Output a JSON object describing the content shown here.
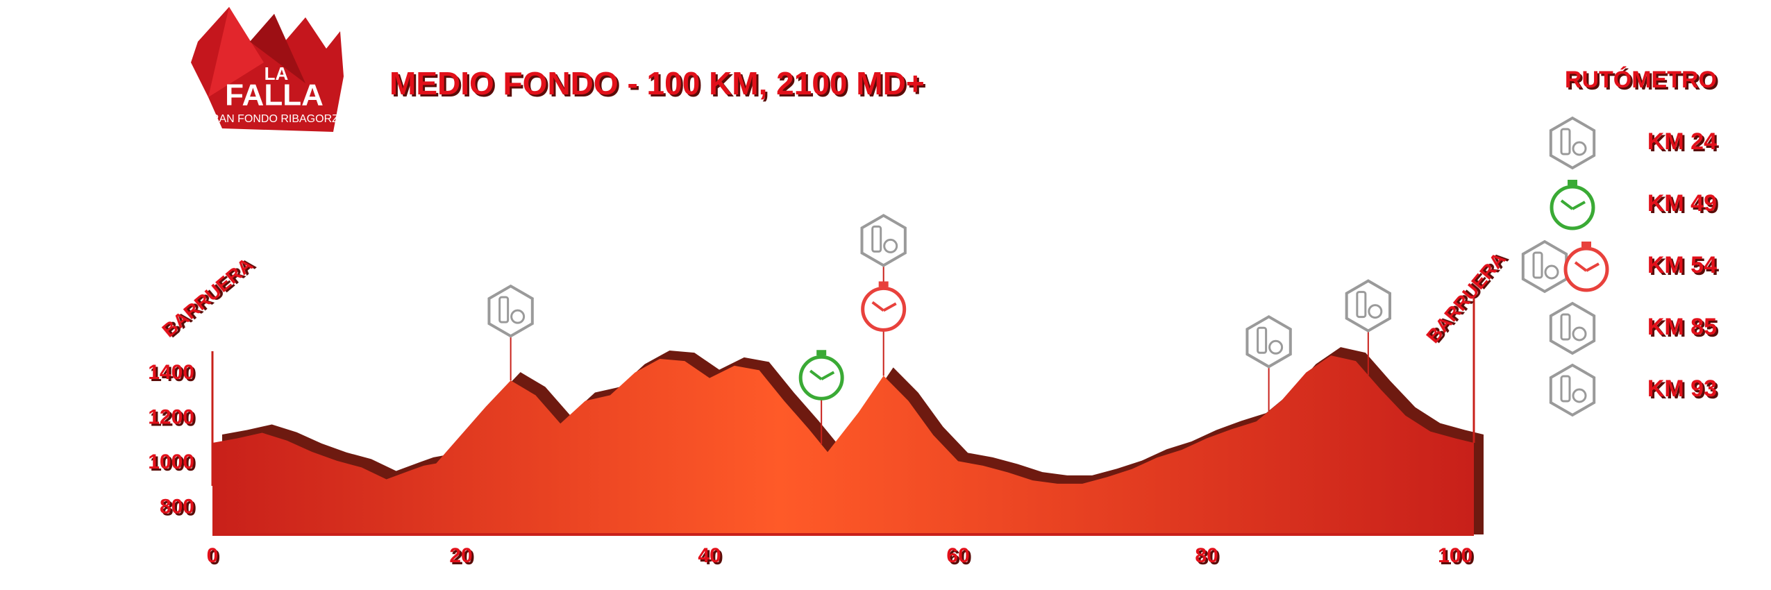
{
  "logo": {
    "top": "LA",
    "main": "FALLA",
    "sub": "GRAN FONDO RIBAGORZA"
  },
  "chart_data": {
    "type": "area",
    "title": "MEDIO FONDO - 100 KM, 2100 MD+",
    "start_label": "BARRUERA",
    "end_label": "BARRUERA",
    "x": [
      0,
      2,
      4,
      6,
      8,
      10,
      12,
      14,
      16,
      17,
      18,
      20,
      22,
      24,
      26,
      28,
      30,
      32,
      34,
      36,
      38,
      40,
      42,
      44,
      46,
      48,
      49.5,
      52,
      54,
      56,
      58,
      60,
      62,
      64,
      66,
      68,
      70,
      72,
      74,
      76,
      78,
      80,
      82,
      84,
      86,
      88,
      90,
      92,
      94,
      96,
      98,
      100,
      101.5
    ],
    "values": [
      1090,
      1110,
      1135,
      1100,
      1050,
      1010,
      980,
      927,
      968,
      988,
      998,
      1125,
      1252,
      1369,
      1303,
      1176,
      1278,
      1303,
      1405,
      1466,
      1456,
      1380,
      1435,
      1415,
      1278,
      1151,
      1049,
      1227,
      1390,
      1278,
      1125,
      1008,
      988,
      958,
      922,
      907,
      907,
      937,
      973,
      1024,
      1059,
      1110,
      1151,
      1186,
      1278,
      1405,
      1481,
      1456,
      1329,
      1212,
      1141,
      1110,
      1090
    ],
    "xlim": [
      0,
      101.5
    ],
    "ylim": [
      680,
      1500
    ],
    "xticks": [
      0,
      20,
      40,
      60,
      80,
      100
    ],
    "yticks": [
      800,
      1000,
      1200,
      1400
    ],
    "color": "#ff5a28",
    "edge_color": "#c8201a",
    "legend_title": "RUTÓMETRO",
    "points": [
      {
        "label": "KM 24",
        "km": 24,
        "icons": [
          "feed"
        ]
      },
      {
        "label": "KM 49",
        "km": 49,
        "icons": [
          "timer-green"
        ]
      },
      {
        "label": "KM 54",
        "km": 54,
        "icons": [
          "feed",
          "timer-red"
        ]
      },
      {
        "label": "KM 85",
        "km": 85,
        "icons": [
          "feed"
        ]
      },
      {
        "label": "KM 93",
        "km": 93,
        "icons": [
          "feed"
        ]
      }
    ],
    "icon_colors": {
      "feed": "#9a9a9a",
      "timer-green": "#3aaa35",
      "timer-red": "#e8413c"
    }
  }
}
